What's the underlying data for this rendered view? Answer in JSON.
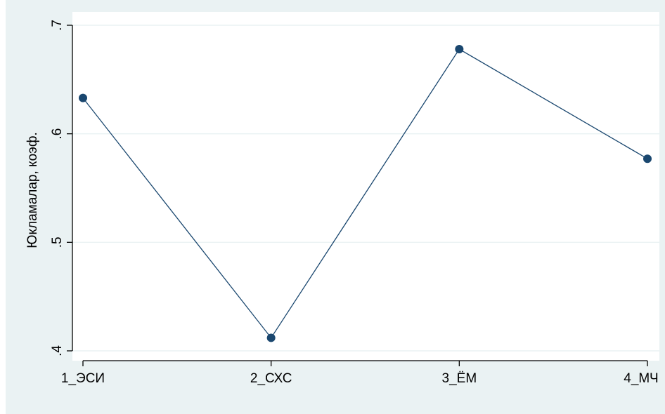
{
  "chart_data": {
    "type": "line",
    "title": "",
    "xlabel": "",
    "ylabel": "Юкламалар, коэф.",
    "categories": [
      "1_ЭСИ",
      "2_СХС",
      "3_ЁМ",
      "4_МЧ"
    ],
    "series": [
      {
        "values": [
          0.633,
          0.412,
          0.678,
          0.577
        ],
        "color": "#1a476f"
      }
    ],
    "ylim": [
      0.4,
      0.7
    ],
    "yticks": [
      0.4,
      0.5,
      0.6,
      0.7
    ],
    "ytick_labels": [
      ".4",
      ".5",
      ".6",
      ".7"
    ],
    "grid": true,
    "legend": "none",
    "colors": {
      "outer_background": "#eaf2f3",
      "plot_background": "#ffffff",
      "gridline": "#eaf2f3",
      "series": "#1a476f",
      "axis": "#000000"
    }
  }
}
